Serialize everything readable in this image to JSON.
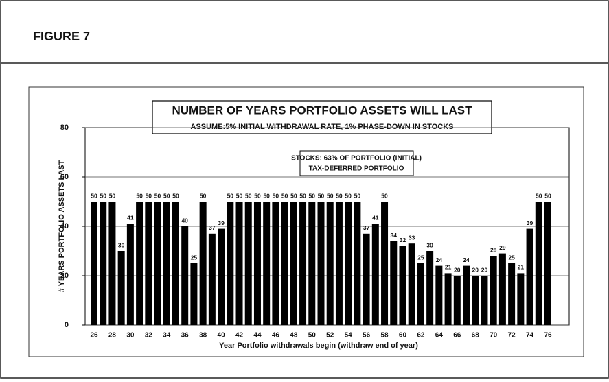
{
  "header": {
    "title": "FIGURE 7"
  },
  "chart_data": {
    "type": "bar",
    "title": "NUMBER OF YEARS PORTFOLIO ASSETS WILL LAST",
    "subtitle": "ASSUME:5% INITIAL WITHDRAWAL RATE, 1% PHASE-DOWN IN STOCKS",
    "annotations": [
      "STOCKS: 63% OF PORTFOLIO (INITIAL)",
      "TAX-DEFERRED PORTFOLIO"
    ],
    "x_label": "Year Portfolio withdrawals begin (withdraw end of year)",
    "y_label": "# YEARS PORTFOLIO ASSETS LAST",
    "categories": [
      "26",
      null,
      "28",
      null,
      "30",
      null,
      "32",
      null,
      "34",
      null,
      "36",
      null,
      "38",
      null,
      "40",
      null,
      "42",
      null,
      "44",
      null,
      "46",
      null,
      "48",
      null,
      "50",
      null,
      "52",
      null,
      "54",
      null,
      "56",
      null,
      "58",
      null,
      "60",
      null,
      "62",
      null,
      "64",
      null,
      "66",
      null,
      "68",
      null,
      "70",
      null,
      "72",
      null,
      "74",
      null,
      "76"
    ],
    "values": [
      50,
      50,
      50,
      30,
      41,
      50,
      50,
      50,
      50,
      50,
      40,
      25,
      50,
      37,
      39,
      50,
      50,
      50,
      50,
      50,
      50,
      50,
      50,
      50,
      50,
      50,
      50,
      50,
      50,
      50,
      37,
      41,
      50,
      34,
      32,
      33,
      25,
      30,
      24,
      21,
      20,
      24,
      20,
      20,
      28,
      29,
      25,
      21,
      39,
      50,
      50
    ],
    "color": "#000000",
    "ylim": [
      0,
      80
    ],
    "yticks": [
      0,
      20,
      40,
      60,
      80
    ],
    "grid": true
  }
}
